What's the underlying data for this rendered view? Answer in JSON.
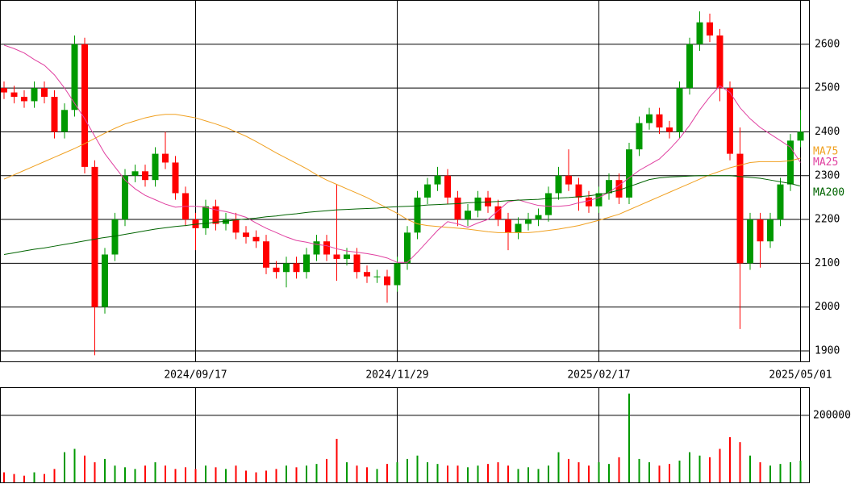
{
  "chart_data": [
    {
      "type": "candlestick",
      "categories": [
        null,
        null,
        null,
        null,
        null,
        null,
        null,
        null,
        null,
        null,
        null,
        null,
        null,
        null,
        null,
        null,
        null,
        null,
        null,
        "2024/09/17",
        null,
        null,
        null,
        null,
        null,
        null,
        null,
        null,
        null,
        null,
        null,
        null,
        null,
        null,
        null,
        null,
        null,
        null,
        null,
        "2024/11/29",
        null,
        null,
        null,
        null,
        null,
        null,
        null,
        null,
        null,
        null,
        null,
        null,
        null,
        null,
        null,
        null,
        null,
        null,
        null,
        "2025/02/17",
        null,
        null,
        null,
        null,
        null,
        null,
        null,
        null,
        null,
        null,
        null,
        null,
        null,
        null,
        null,
        null,
        null,
        null,
        null,
        "2025/05/01"
      ],
      "open": [
        2500,
        2490,
        2480,
        2470,
        2500,
        2480,
        2400,
        2450,
        2600,
        2320,
        2000,
        2120,
        2200,
        2300,
        2310,
        2290,
        2350,
        2330,
        2260,
        2200,
        2180,
        2230,
        2190,
        2200,
        2170,
        2160,
        2150,
        2090,
        2080,
        2100,
        2080,
        2120,
        2150,
        2120,
        2110,
        2120,
        2080,
        2070,
        2070,
        2050,
        2100,
        2170,
        2250,
        2280,
        2300,
        2250,
        2200,
        2220,
        2250,
        2230,
        2200,
        2170,
        2190,
        2200,
        2210,
        2260,
        2300,
        2280,
        2250,
        2230,
        2260,
        2290,
        2250,
        2360,
        2420,
        2440,
        2410,
        2400,
        2500,
        2600,
        2650,
        2620,
        2500,
        2350,
        2100,
        2200,
        2150,
        2200,
        2280,
        2380
      ],
      "high": [
        2515,
        2505,
        2495,
        2515,
        2515,
        2495,
        2465,
        2620,
        2615,
        2335,
        2135,
        2215,
        2315,
        2325,
        2325,
        2365,
        2400,
        2345,
        2275,
        2215,
        2245,
        2245,
        2215,
        2215,
        2185,
        2175,
        2165,
        2105,
        2115,
        2115,
        2135,
        2165,
        2165,
        2280,
        2135,
        2135,
        2095,
        2085,
        2085,
        2115,
        2185,
        2265,
        2295,
        2320,
        2315,
        2265,
        2235,
        2265,
        2265,
        2245,
        2215,
        2205,
        2215,
        2225,
        2275,
        2320,
        2360,
        2295,
        2265,
        2275,
        2305,
        2305,
        2375,
        2435,
        2455,
        2455,
        2425,
        2515,
        2615,
        2675,
        2670,
        2635,
        2515,
        2410,
        2215,
        2215,
        2215,
        2295,
        2395,
        2450
      ],
      "low": [
        2475,
        2465,
        2455,
        2455,
        2465,
        2385,
        2385,
        2435,
        2305,
        1890,
        1985,
        2105,
        2185,
        2285,
        2275,
        2275,
        2315,
        2245,
        2185,
        2130,
        2165,
        2175,
        2175,
        2155,
        2145,
        2135,
        2075,
        2065,
        2045,
        2065,
        2065,
        2105,
        2105,
        2060,
        2095,
        2065,
        2055,
        2055,
        2010,
        2035,
        2085,
        2155,
        2235,
        2265,
        2235,
        2185,
        2185,
        2205,
        2215,
        2185,
        2130,
        2155,
        2175,
        2185,
        2195,
        2245,
        2265,
        2220,
        2215,
        2215,
        2245,
        2235,
        2235,
        2345,
        2405,
        2395,
        2385,
        2385,
        2485,
        2585,
        2605,
        2470,
        2335,
        1950,
        2085,
        2090,
        2135,
        2185,
        2265,
        2365
      ],
      "close": [
        2490,
        2480,
        2470,
        2500,
        2480,
        2400,
        2450,
        2600,
        2320,
        2000,
        2120,
        2200,
        2300,
        2310,
        2290,
        2350,
        2330,
        2260,
        2200,
        2180,
        2230,
        2190,
        2200,
        2170,
        2160,
        2150,
        2090,
        2080,
        2100,
        2080,
        2120,
        2150,
        2120,
        2110,
        2120,
        2080,
        2070,
        2070,
        2050,
        2100,
        2170,
        2250,
        2280,
        2300,
        2250,
        2200,
        2220,
        2250,
        2230,
        2200,
        2170,
        2190,
        2200,
        2210,
        2260,
        2300,
        2280,
        2250,
        2230,
        2260,
        2290,
        2250,
        2360,
        2420,
        2440,
        2410,
        2400,
        2500,
        2600,
        2650,
        2620,
        2500,
        2350,
        2100,
        2200,
        2150,
        2200,
        2280,
        2380,
        2400
      ],
      "up_color": "#009900",
      "down_color": "#ff0000",
      "series": [
        {
          "name": "MA75",
          "color": "#f0a020",
          "values": [
            2292,
            2302,
            2312,
            2322,
            2332,
            2342,
            2352,
            2362,
            2373,
            2385,
            2397,
            2408,
            2418,
            2425,
            2432,
            2437,
            2440,
            2440,
            2436,
            2432,
            2425,
            2418,
            2410,
            2400,
            2390,
            2378,
            2365,
            2352,
            2340,
            2328,
            2316,
            2302,
            2290,
            2280,
            2270,
            2260,
            2250,
            2238,
            2226,
            2214,
            2200,
            2190,
            2186,
            2184,
            2182,
            2180,
            2178,
            2175,
            2172,
            2170,
            2170,
            2170,
            2170,
            2172,
            2175,
            2178,
            2182,
            2186,
            2192,
            2198,
            2205,
            2212,
            2222,
            2232,
            2242,
            2252,
            2262,
            2272,
            2282,
            2292,
            2302,
            2310,
            2318,
            2324,
            2330,
            2332,
            2332,
            2332,
            2334,
            2340
          ]
        },
        {
          "name": "MA25",
          "color": "#e040a0",
          "values": [
            2598,
            2590,
            2580,
            2565,
            2552,
            2530,
            2500,
            2465,
            2430,
            2390,
            2350,
            2320,
            2290,
            2270,
            2255,
            2245,
            2235,
            2228,
            2230,
            2230,
            2228,
            2222,
            2218,
            2212,
            2205,
            2192,
            2180,
            2170,
            2160,
            2152,
            2148,
            2143,
            2140,
            2133,
            2128,
            2125,
            2122,
            2118,
            2112,
            2102,
            2102,
            2125,
            2150,
            2175,
            2195,
            2190,
            2182,
            2192,
            2200,
            2220,
            2240,
            2245,
            2238,
            2232,
            2230,
            2230,
            2232,
            2238,
            2243,
            2250,
            2262,
            2278,
            2295,
            2312,
            2325,
            2338,
            2360,
            2385,
            2415,
            2450,
            2480,
            2505,
            2490,
            2455,
            2430,
            2410,
            2395,
            2380,
            2365,
            2330
          ]
        },
        {
          "name": "MA200",
          "color": "#006400",
          "values": [
            2120,
            2124,
            2128,
            2132,
            2135,
            2139,
            2143,
            2147,
            2151,
            2155,
            2159,
            2162,
            2166,
            2170,
            2174,
            2178,
            2181,
            2184,
            2186,
            2189,
            2191,
            2194,
            2196,
            2199,
            2201,
            2203,
            2206,
            2208,
            2211,
            2213,
            2216,
            2218,
            2220,
            2222,
            2223,
            2224,
            2225,
            2226,
            2228,
            2229,
            2230,
            2231,
            2233,
            2234,
            2235,
            2236,
            2238,
            2239,
            2240,
            2241,
            2243,
            2244,
            2245,
            2246,
            2248,
            2249,
            2250,
            2252,
            2254,
            2257,
            2261,
            2267,
            2275,
            2283,
            2291,
            2295,
            2297,
            2298,
            2299,
            2300,
            2300,
            2300,
            2300,
            2298,
            2296,
            2294,
            2290,
            2286,
            2282,
            2276
          ]
        }
      ],
      "ylim": [
        1876,
        2701
      ],
      "yticks": [
        1900,
        2000,
        2100,
        2200,
        2300,
        2400,
        2500,
        2600
      ],
      "grid": true
    },
    {
      "type": "bar",
      "values": [
        30000,
        25000,
        20000,
        30000,
        25000,
        40000,
        90000,
        100000,
        80000,
        60000,
        70000,
        50000,
        45000,
        40000,
        50000,
        60000,
        50000,
        40000,
        45000,
        40000,
        50000,
        45000,
        40000,
        50000,
        35000,
        30000,
        35000,
        40000,
        50000,
        45000,
        50000,
        55000,
        70000,
        130000,
        60000,
        50000,
        45000,
        40000,
        55000,
        60000,
        70000,
        80000,
        60000,
        55000,
        50000,
        50000,
        45000,
        50000,
        55000,
        60000,
        50000,
        40000,
        45000,
        40000,
        50000,
        90000,
        70000,
        60000,
        50000,
        60000,
        55000,
        75000,
        265000,
        70000,
        60000,
        50000,
        55000,
        65000,
        90000,
        80000,
        75000,
        100000,
        135000,
        120000,
        80000,
        60000,
        50000,
        55000,
        60000,
        65000
      ],
      "ylim": [
        0,
        284000
      ],
      "yticks": [
        200000
      ],
      "grid": true
    }
  ]
}
